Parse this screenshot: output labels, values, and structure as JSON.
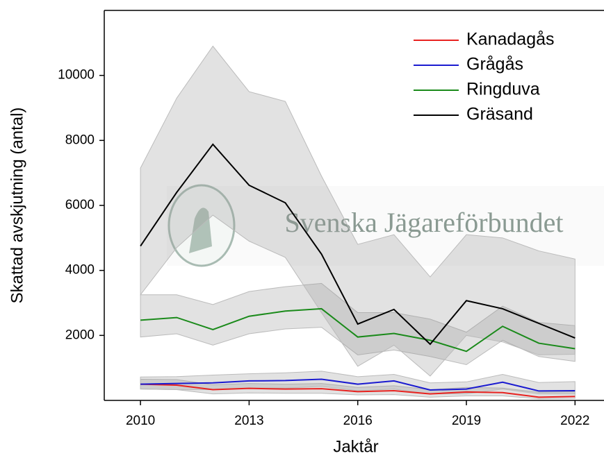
{
  "chart_data": {
    "type": "line",
    "watermark": "Svenska Jägareförbundet",
    "xlabel": "Jaktår",
    "ylabel": "Skattad avskjutning (antal)",
    "x": [
      2010,
      2011,
      2012,
      2013,
      2014,
      2015,
      2016,
      2017,
      2018,
      2019,
      2020,
      2021,
      2022
    ],
    "xlim": [
      2009,
      2022.8
    ],
    "xticks": [
      2010,
      2013,
      2016,
      2019,
      2022
    ],
    "ylim": [
      0,
      12000
    ],
    "yticks": [
      2000,
      4000,
      6000,
      8000,
      10000
    ],
    "legend": "upper right",
    "series": [
      {
        "name": "Kanadagås",
        "color": "#e8221f",
        "values": [
          500,
          470,
          330,
          370,
          350,
          360,
          270,
          300,
          200,
          260,
          240,
          100,
          120
        ],
        "upper": [
          650,
          640,
          480,
          520,
          500,
          520,
          400,
          450,
          330,
          400,
          380,
          250,
          270
        ],
        "lower": [
          350,
          330,
          200,
          230,
          220,
          220,
          170,
          180,
          100,
          140,
          140,
          50,
          60
        ]
      },
      {
        "name": "Grågås",
        "color": "#1a1ad0",
        "values": [
          500,
          520,
          540,
          600,
          610,
          650,
          500,
          600,
          320,
          350,
          560,
          290,
          300
        ],
        "upper": [
          720,
          730,
          780,
          820,
          850,
          900,
          730,
          800,
          540,
          570,
          800,
          550,
          580
        ],
        "lower": [
          350,
          330,
          330,
          380,
          380,
          430,
          300,
          350,
          200,
          200,
          350,
          200,
          200
        ]
      },
      {
        "name": "Ringduva",
        "color": "#1a8a1a",
        "values": [
          2470,
          2550,
          2180,
          2590,
          2750,
          2820,
          1950,
          2060,
          1850,
          1510,
          2280,
          1760,
          1590
        ],
        "upper": [
          3250,
          3250,
          2950,
          3350,
          3500,
          3600,
          2700,
          2700,
          2500,
          2100,
          2900,
          2400,
          2300
        ],
        "lower": [
          1950,
          2050,
          1700,
          2050,
          2200,
          2250,
          1400,
          1550,
          1350,
          1100,
          1850,
          1350,
          1200
        ]
      },
      {
        "name": "Gräsand",
        "color": "#000000",
        "values": [
          4750,
          6400,
          7880,
          6620,
          6080,
          4500,
          2350,
          2800,
          1730,
          3070,
          2820,
          2370,
          1920
        ],
        "upper": [
          7150,
          9300,
          10900,
          9500,
          9200,
          6900,
          4800,
          5100,
          3800,
          5100,
          5000,
          4600,
          4350
        ],
        "lower": [
          3250,
          4700,
          5700,
          4900,
          4400,
          2700,
          1050,
          1700,
          750,
          2000,
          1800,
          1400,
          1420
        ]
      }
    ]
  }
}
